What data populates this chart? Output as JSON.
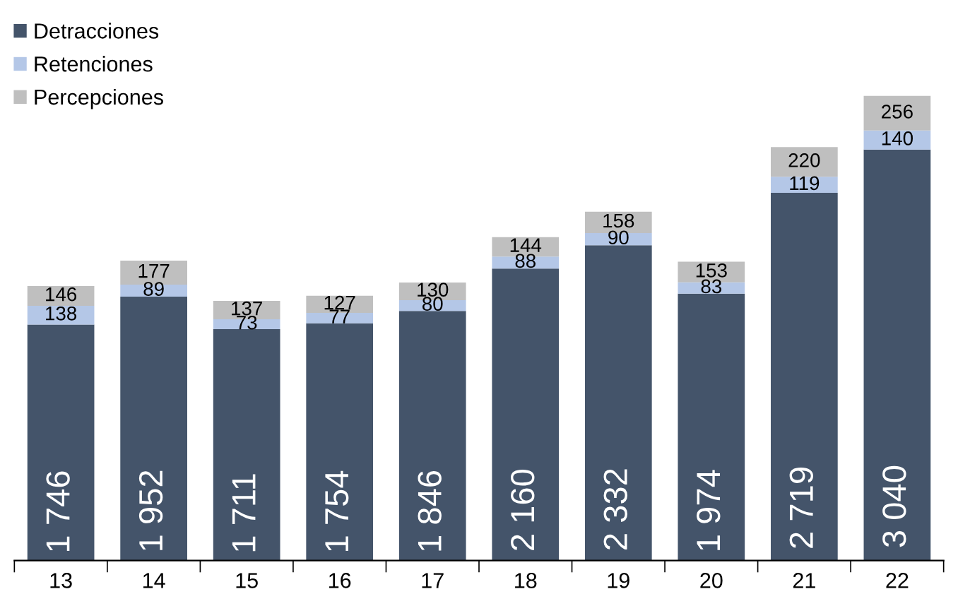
{
  "chart_data": {
    "type": "bar",
    "stacked": true,
    "legend": "top left",
    "categories": [
      "13",
      "14",
      "15",
      "16",
      "17",
      "18",
      "19",
      "20",
      "21",
      "22"
    ],
    "series": [
      {
        "name": "Detracciones",
        "color": "#44546a",
        "values": [
          1746,
          1952,
          1711,
          1754,
          1846,
          2160,
          2332,
          1974,
          2719,
          3040
        ],
        "value_labels": [
          "1 746",
          "1 952",
          "1 711",
          "1 754",
          "1 846",
          "2 160",
          "2 332",
          "1 974",
          "2 719",
          "3 040"
        ]
      },
      {
        "name": "Retenciones",
        "color": "#b4c7e7",
        "values": [
          138,
          89,
          73,
          77,
          80,
          88,
          90,
          83,
          119,
          140
        ],
        "value_labels": [
          "138",
          "89",
          "73",
          "77",
          "80",
          "88",
          "90",
          "83",
          "119",
          "140"
        ]
      },
      {
        "name": "Percepciones",
        "color": "#bfbfbf",
        "values": [
          146,
          177,
          137,
          127,
          130,
          144,
          158,
          153,
          220,
          256
        ],
        "value_labels": [
          "146",
          "177",
          "137",
          "127",
          "130",
          "144",
          "158",
          "153",
          "220",
          "256"
        ]
      }
    ]
  }
}
